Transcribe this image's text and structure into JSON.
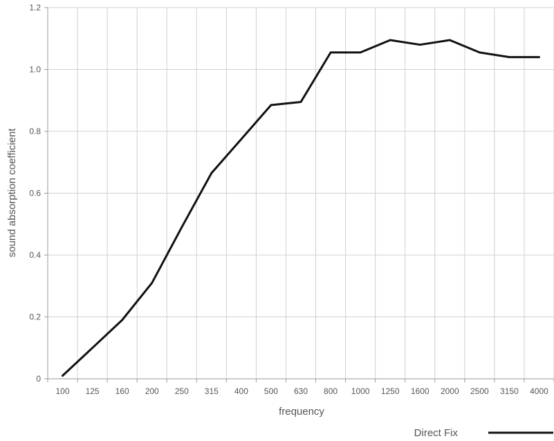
{
  "chart_data": {
    "type": "line",
    "categories": [
      "100",
      "125",
      "160",
      "200",
      "250",
      "315",
      "400",
      "500",
      "630",
      "800",
      "1000",
      "1250",
      "1600",
      "2000",
      "2500",
      "3150",
      "4000"
    ],
    "series": [
      {
        "name": "Direct Fix",
        "values": [
          0.01,
          0.1,
          0.19,
          0.31,
          0.49,
          0.665,
          0.775,
          0.885,
          0.895,
          1.055,
          1.055,
          1.095,
          1.08,
          1.095,
          1.055,
          1.04,
          1.04
        ]
      }
    ],
    "xlabel": "frequency",
    "ylabel": "sound absorption coefficient",
    "ylim": [
      0,
      1.2
    ],
    "yticks": [
      0,
      0.2,
      0.4,
      0.6,
      0.8,
      1.0,
      1.2
    ],
    "ytick_labels": [
      "0",
      "0.2",
      "0.4",
      "0.6",
      "0.8",
      "1.0",
      "1.2"
    ],
    "grid": true,
    "legend_position": "bottom-right",
    "colors": {
      "line": "#111111",
      "grid": "#d0d0d0",
      "axis": "#999999",
      "text": "#555555"
    }
  }
}
